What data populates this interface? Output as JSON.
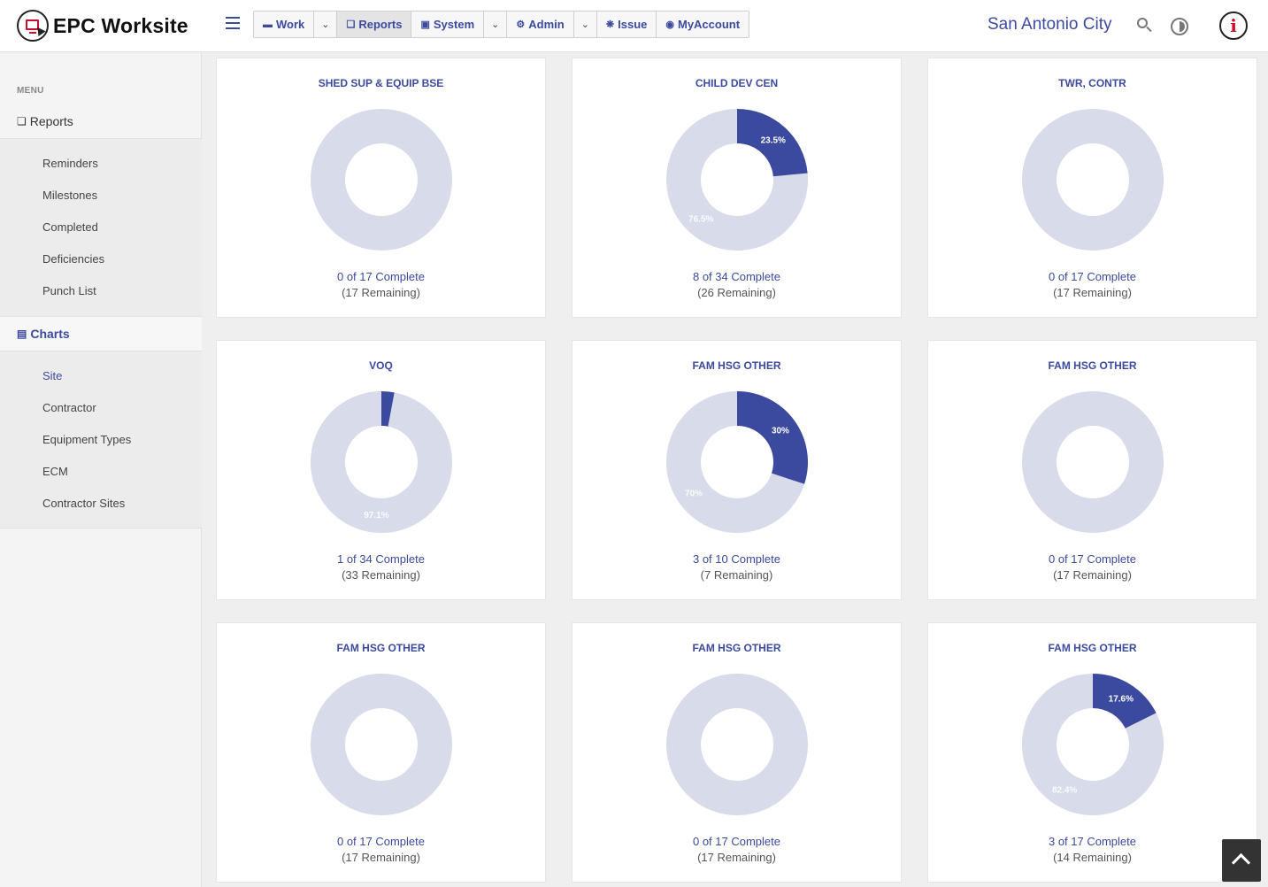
{
  "app": {
    "brand": "EPC Worksite",
    "location": "San Antonio City"
  },
  "nav": [
    {
      "label": "Work",
      "icon": "folder-icon"
    },
    {
      "label": "Reports",
      "icon": "copy-icon"
    },
    {
      "label": "System",
      "icon": "lock-icon"
    },
    {
      "label": "Admin",
      "icon": "gears-icon"
    },
    {
      "label": "Issue",
      "icon": "bug-icon"
    },
    {
      "label": "MyAccount",
      "icon": "user-circle-icon"
    }
  ],
  "sidebar": {
    "menu_label": "MENU",
    "reports_label": "Reports",
    "reports_items": [
      "Reminders",
      "Milestones",
      "Completed",
      "Deficiencies",
      "Punch List"
    ],
    "charts_label": "Charts",
    "charts_items": [
      "Site",
      "Contractor",
      "Equipment Types",
      "ECM",
      "Contractor Sites"
    ]
  },
  "colors": {
    "complete": "#3b4a9f",
    "remaining": "#d7dbea"
  },
  "chart_data": [
    {
      "type": "pie",
      "title": "SHED SUP & EQUIP BSE",
      "complete": 0,
      "total": 17,
      "summary": "0 of 17 Complete",
      "remaining_text": "(17 Remaining)",
      "labels": []
    },
    {
      "type": "pie",
      "title": "CHILD DEV CEN",
      "complete": 8,
      "total": 34,
      "summary": "8 of 34 Complete",
      "remaining_text": "(26 Remaining)",
      "labels": [
        "23.5%",
        "76.5%"
      ]
    },
    {
      "type": "pie",
      "title": "TWR, CONTR",
      "complete": 0,
      "total": 17,
      "summary": "0 of 17 Complete",
      "remaining_text": "(17 Remaining)",
      "labels": []
    },
    {
      "type": "pie",
      "title": "VOQ",
      "complete": 1,
      "total": 34,
      "summary": "1 of 34 Complete",
      "remaining_text": "(33 Remaining)",
      "labels": [
        "",
        "97.1%"
      ]
    },
    {
      "type": "pie",
      "title": "FAM HSG OTHER",
      "complete": 3,
      "total": 10,
      "summary": "3 of 10 Complete",
      "remaining_text": "(7 Remaining)",
      "labels": [
        "30%",
        "70%"
      ]
    },
    {
      "type": "pie",
      "title": "FAM HSG OTHER",
      "complete": 0,
      "total": 17,
      "summary": "0 of 17 Complete",
      "remaining_text": "(17 Remaining)",
      "labels": []
    },
    {
      "type": "pie",
      "title": "FAM HSG OTHER",
      "complete": 0,
      "total": 17,
      "summary": "0 of 17 Complete",
      "remaining_text": "(17 Remaining)",
      "labels": []
    },
    {
      "type": "pie",
      "title": "FAM HSG OTHER",
      "complete": 0,
      "total": 17,
      "summary": "0 of 17 Complete",
      "remaining_text": "(17 Remaining)",
      "labels": []
    },
    {
      "type": "pie",
      "title": "FAM HSG OTHER",
      "complete": 3,
      "total": 17,
      "summary": "3 of 17 Complete",
      "remaining_text": "(14 Remaining)",
      "labels": [
        "17.6%",
        "82.4%"
      ]
    }
  ]
}
